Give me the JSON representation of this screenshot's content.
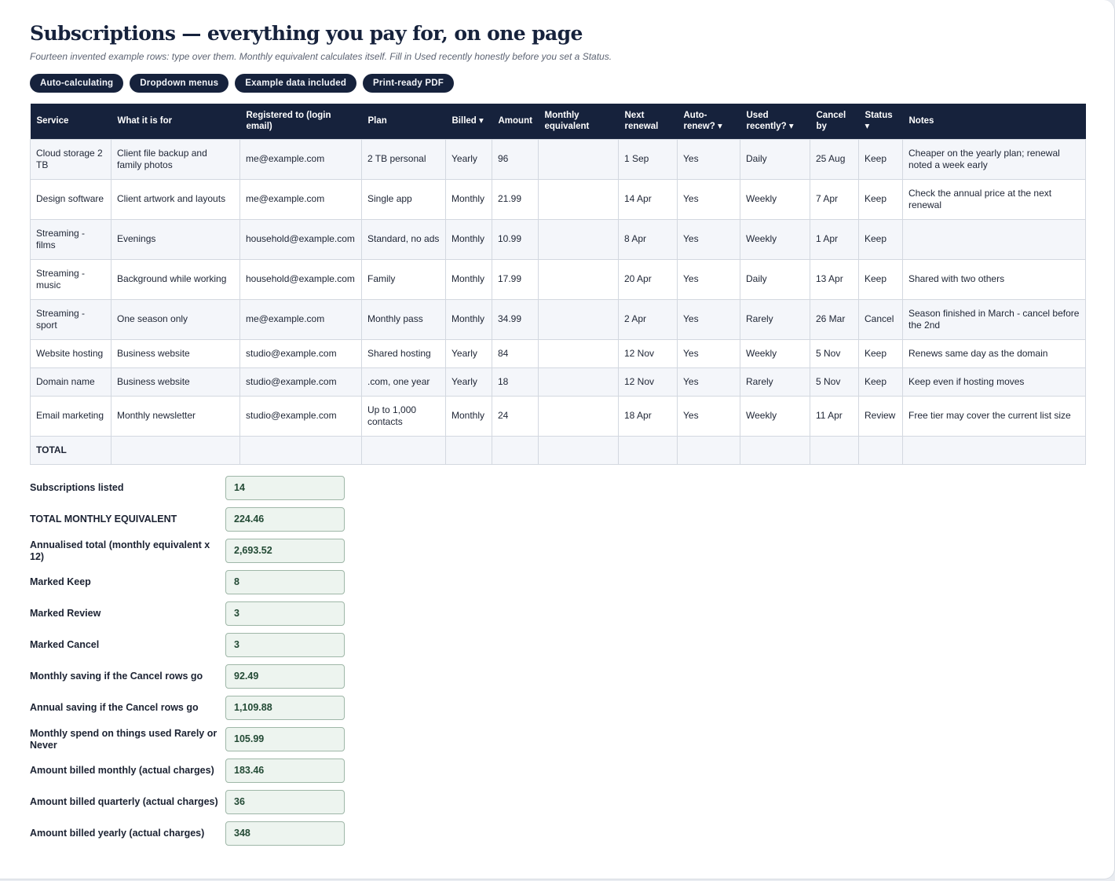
{
  "header": {
    "title": "Subscriptions — everything you pay for, on one page",
    "subtitle": "Fourteen invented example rows: type over them. Monthly equivalent calculates itself. Fill in Used recently honestly before you set a Status."
  },
  "chips": [
    "Auto-calculating",
    "Dropdown menus",
    "Example data included",
    "Print-ready PDF"
  ],
  "table": {
    "columns": {
      "service": "Service",
      "purpose": "What it is for",
      "login": "Registered to (login email)",
      "plan": "Plan",
      "billed": "Billed ▾",
      "amount": "Amount",
      "monthly": "Monthly equivalent",
      "renewal": "Next renewal",
      "autorenew": "Auto-renew? ▾",
      "used": "Used recently? ▾",
      "cancelby": "Cancel by",
      "status": "Status ▾",
      "notes": "Notes"
    },
    "rows": [
      {
        "service": "Cloud storage 2 TB",
        "purpose": "Client file backup and family photos",
        "login": "me@example.com",
        "plan": "2 TB personal",
        "billed": "Yearly",
        "amount": "96",
        "monthly": "",
        "renewal": "1 Sep",
        "autorenew": "Yes",
        "used": "Daily",
        "cancelby": "25 Aug",
        "status": "Keep",
        "notes": "Cheaper on the yearly plan; renewal noted a week early"
      },
      {
        "service": "Design software",
        "purpose": "Client artwork and layouts",
        "login": "me@example.com",
        "plan": "Single app",
        "billed": "Monthly",
        "amount": "21.99",
        "monthly": "",
        "renewal": "14 Apr",
        "autorenew": "Yes",
        "used": "Weekly",
        "cancelby": "7 Apr",
        "status": "Keep",
        "notes": "Check the annual price at the next renewal"
      },
      {
        "service": "Streaming - films",
        "purpose": "Evenings",
        "login": "household@example.com",
        "plan": "Standard, no ads",
        "billed": "Monthly",
        "amount": "10.99",
        "monthly": "",
        "renewal": "8 Apr",
        "autorenew": "Yes",
        "used": "Weekly",
        "cancelby": "1 Apr",
        "status": "Keep",
        "notes": ""
      },
      {
        "service": "Streaming - music",
        "purpose": "Background while working",
        "login": "household@example.com",
        "plan": "Family",
        "billed": "Monthly",
        "amount": "17.99",
        "monthly": "",
        "renewal": "20 Apr",
        "autorenew": "Yes",
        "used": "Daily",
        "cancelby": "13 Apr",
        "status": "Keep",
        "notes": "Shared with two others"
      },
      {
        "service": "Streaming - sport",
        "purpose": "One season only",
        "login": "me@example.com",
        "plan": "Monthly pass",
        "billed": "Monthly",
        "amount": "34.99",
        "monthly": "",
        "renewal": "2 Apr",
        "autorenew": "Yes",
        "used": "Rarely",
        "cancelby": "26 Mar",
        "status": "Cancel",
        "notes": "Season finished in March - cancel before the 2nd"
      },
      {
        "service": "Website hosting",
        "purpose": "Business website",
        "login": "studio@example.com",
        "plan": "Shared hosting",
        "billed": "Yearly",
        "amount": "84",
        "monthly": "",
        "renewal": "12 Nov",
        "autorenew": "Yes",
        "used": "Weekly",
        "cancelby": "5 Nov",
        "status": "Keep",
        "notes": "Renews same day as the domain"
      },
      {
        "service": "Domain name",
        "purpose": "Business website",
        "login": "studio@example.com",
        "plan": ".com, one year",
        "billed": "Yearly",
        "amount": "18",
        "monthly": "",
        "renewal": "12 Nov",
        "autorenew": "Yes",
        "used": "Rarely",
        "cancelby": "5 Nov",
        "status": "Keep",
        "notes": "Keep even if hosting moves"
      },
      {
        "service": "Email marketing",
        "purpose": "Monthly newsletter",
        "login": "studio@example.com",
        "plan": "Up to 1,000 contacts",
        "billed": "Monthly",
        "amount": "24",
        "monthly": "",
        "renewal": "18 Apr",
        "autorenew": "Yes",
        "used": "Weekly",
        "cancelby": "11 Apr",
        "status": "Review",
        "notes": "Free tier may cover the current list size"
      }
    ],
    "total_label": "TOTAL"
  },
  "summary": [
    {
      "label": "Subscriptions listed",
      "value": "14"
    },
    {
      "label": "TOTAL MONTHLY EQUIVALENT",
      "value": "224.46"
    },
    {
      "label": "Annualised total (monthly equivalent x 12)",
      "value": "2,693.52"
    },
    {
      "label": "Marked Keep",
      "value": "8"
    },
    {
      "label": "Marked Review",
      "value": "3"
    },
    {
      "label": "Marked Cancel",
      "value": "3"
    },
    {
      "label": "Monthly saving if the Cancel rows go",
      "value": "92.49"
    },
    {
      "label": "Annual saving if the Cancel rows go",
      "value": "1,109.88"
    },
    {
      "label": "Monthly spend on things used Rarely or Never",
      "value": "105.99"
    },
    {
      "label": "Amount billed monthly (actual charges)",
      "value": "183.46"
    },
    {
      "label": "Amount billed quarterly (actual charges)",
      "value": "36"
    },
    {
      "label": "Amount billed yearly (actual charges)",
      "value": "348"
    }
  ]
}
